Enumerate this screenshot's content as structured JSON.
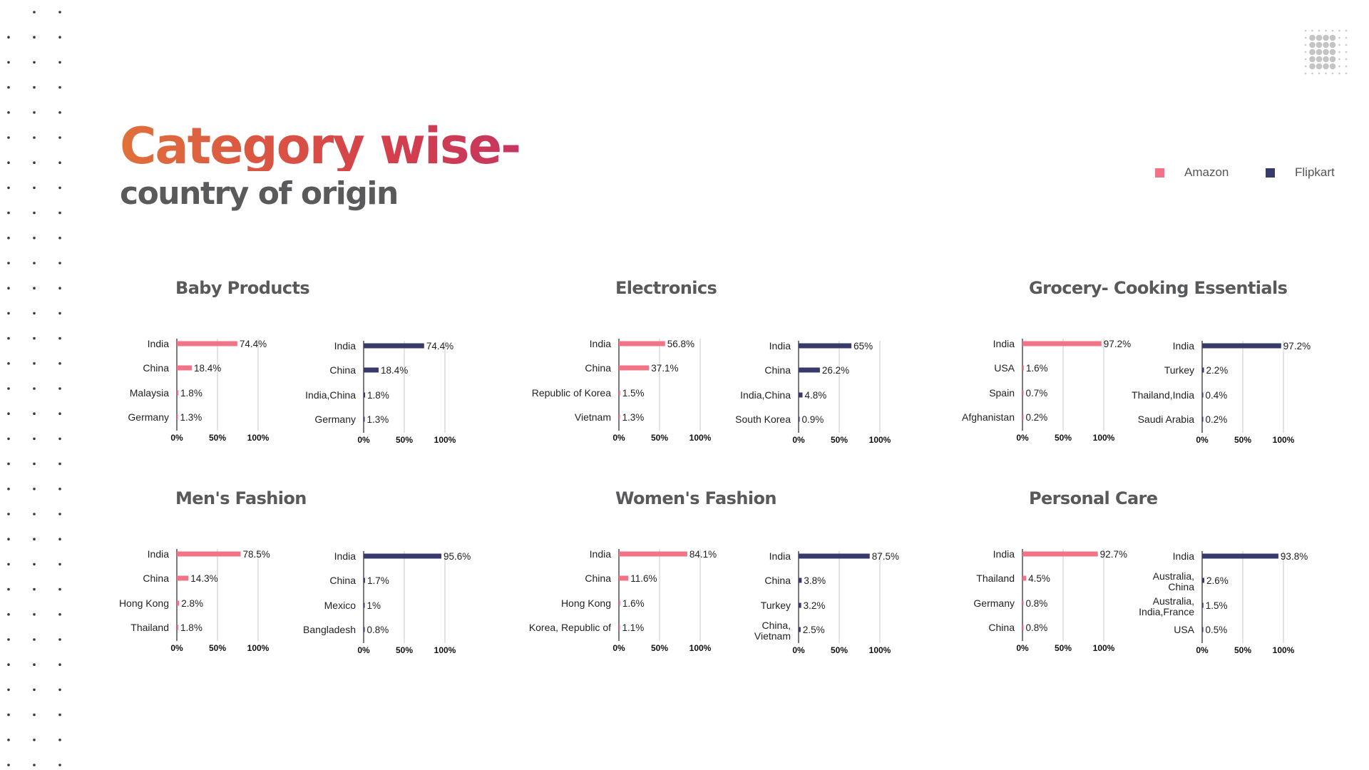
{
  "page": {
    "title": "Category wise-",
    "subtitle": "country of origin"
  },
  "legend": [
    {
      "label": "Amazon",
      "color": "#f07386"
    },
    {
      "label": "Flipkart",
      "color": "#383a6b"
    }
  ],
  "colors": {
    "amazon": "#f07386",
    "flipkart": "#383a6b",
    "grid": "#c8c8c8",
    "axis": "#222222"
  },
  "chart_data": [
    {
      "type": "bar",
      "orientation": "horizontal",
      "title": "Baby Products",
      "xlim": [
        0,
        100
      ],
      "ticks": [
        "0%",
        "50%",
        "100%"
      ],
      "charts": [
        {
          "series": "Amazon",
          "categories": [
            "India",
            "China",
            "Malaysia",
            "Germany"
          ],
          "values": [
            74.4,
            18.4,
            1.8,
            1.3
          ],
          "labels": [
            "74.4%",
            "18.4%",
            "1.8%",
            "1.3%"
          ]
        },
        {
          "series": "Flipkart",
          "categories": [
            "India",
            "China",
            "India,China",
            "Germany"
          ],
          "values": [
            74.4,
            18.4,
            1.8,
            1.3
          ],
          "labels": [
            "74.4%",
            "18.4%",
            "1.8%",
            "1.3%"
          ]
        }
      ]
    },
    {
      "type": "bar",
      "orientation": "horizontal",
      "title": "Electronics",
      "xlim": [
        0,
        100
      ],
      "ticks": [
        "0%",
        "50%",
        "100%"
      ],
      "charts": [
        {
          "series": "Amazon",
          "categories": [
            "India",
            "China",
            "Republic of Korea",
            "Vietnam"
          ],
          "values": [
            56.8,
            37.1,
            1.5,
            1.3
          ],
          "labels": [
            "56.8%",
            "37.1%",
            "1.5%",
            "1.3%"
          ]
        },
        {
          "series": "Flipkart",
          "categories": [
            "India",
            "China",
            "India,China",
            "South Korea"
          ],
          "values": [
            65,
            26.2,
            4.8,
            0.9
          ],
          "labels": [
            "65%",
            "26.2%",
            "4.8%",
            "0.9%"
          ]
        }
      ]
    },
    {
      "type": "bar",
      "orientation": "horizontal",
      "title": "Grocery- Cooking Essentials",
      "xlim": [
        0,
        100
      ],
      "ticks": [
        "0%",
        "50%",
        "100%"
      ],
      "charts": [
        {
          "series": "Amazon",
          "categories": [
            "India",
            "USA",
            "Spain",
            "Afghanistan"
          ],
          "values": [
            97.2,
            1.6,
            0.7,
            0.2
          ],
          "labels": [
            "97.2%",
            "1.6%",
            "0.7%",
            "0.2%"
          ]
        },
        {
          "series": "Flipkart",
          "categories": [
            "India",
            "Turkey",
            "Thailand,India",
            "Saudi Arabia"
          ],
          "values": [
            97.2,
            2.2,
            0.4,
            0.2
          ],
          "labels": [
            "97.2%",
            "2.2%",
            "0.4%",
            "0.2%"
          ]
        }
      ]
    },
    {
      "type": "bar",
      "orientation": "horizontal",
      "title": "Men's Fashion",
      "xlim": [
        0,
        100
      ],
      "ticks": [
        "0%",
        "50%",
        "100%"
      ],
      "charts": [
        {
          "series": "Amazon",
          "categories": [
            "India",
            "China",
            "Hong Kong",
            "Thailand"
          ],
          "values": [
            78.5,
            14.3,
            2.8,
            1.8
          ],
          "labels": [
            "78.5%",
            "14.3%",
            "2.8%",
            "1.8%"
          ]
        },
        {
          "series": "Flipkart",
          "categories": [
            "India",
            "China",
            "Mexico",
            "Bangladesh"
          ],
          "values": [
            95.6,
            1.7,
            1,
            0.8
          ],
          "labels": [
            "95.6%",
            "1.7%",
            "1%",
            "0.8%"
          ]
        }
      ]
    },
    {
      "type": "bar",
      "orientation": "horizontal",
      "title": "Women's Fashion",
      "xlim": [
        0,
        100
      ],
      "ticks": [
        "0%",
        "50%",
        "100%"
      ],
      "charts": [
        {
          "series": "Amazon",
          "categories": [
            "India",
            "China",
            "Hong Kong",
            "Korea, Republic of"
          ],
          "values": [
            84.1,
            11.6,
            1.6,
            1.1
          ],
          "labels": [
            "84.1%",
            "11.6%",
            "1.6%",
            "1.1%"
          ]
        },
        {
          "series": "Flipkart",
          "categories": [
            "India",
            "China",
            "Turkey",
            "China,\nVietnam"
          ],
          "values": [
            87.5,
            3.8,
            3.2,
            2.5
          ],
          "labels": [
            "87.5%",
            "3.8%",
            "3.2%",
            "2.5%"
          ]
        }
      ]
    },
    {
      "type": "bar",
      "orientation": "horizontal",
      "title": "Personal Care",
      "xlim": [
        0,
        100
      ],
      "ticks": [
        "0%",
        "50%",
        "100%"
      ],
      "charts": [
        {
          "series": "Amazon",
          "categories": [
            "India",
            "Thailand",
            "Germany",
            "China"
          ],
          "values": [
            92.7,
            4.5,
            0.8,
            0.8
          ],
          "labels": [
            "92.7%",
            "4.5%",
            "0.8%",
            "0.8%"
          ]
        },
        {
          "series": "Flipkart",
          "categories": [
            "India",
            "Australia,\nChina",
            "Australia,\nIndia,France",
            "USA"
          ],
          "values": [
            93.8,
            2.6,
            1.5,
            0.5
          ],
          "labels": [
            "93.8%",
            "2.6%",
            "1.5%",
            "0.5%"
          ]
        }
      ]
    }
  ]
}
